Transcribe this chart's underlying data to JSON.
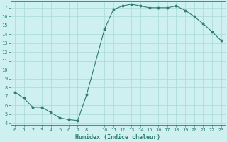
{
  "x": [
    0,
    1,
    2,
    3,
    4,
    5,
    6,
    7,
    8,
    10,
    11,
    12,
    13,
    14,
    15,
    16,
    17,
    18,
    19,
    20,
    21,
    22,
    23
  ],
  "y": [
    7.5,
    6.8,
    5.8,
    5.8,
    5.2,
    4.6,
    4.4,
    4.3,
    7.2,
    14.6,
    16.8,
    17.2,
    17.4,
    17.2,
    17.0,
    17.0,
    17.0,
    17.2,
    16.7,
    16.0,
    15.2,
    14.3,
    13.3
  ],
  "xlim": [
    -0.5,
    23.5
  ],
  "ylim": [
    3.8,
    17.7
  ],
  "yticks": [
    4,
    5,
    6,
    7,
    8,
    9,
    10,
    11,
    12,
    13,
    14,
    15,
    16,
    17
  ],
  "xtick_positions": [
    0,
    1,
    2,
    3,
    4,
    5,
    6,
    7,
    8,
    10,
    11,
    12,
    13,
    14,
    15,
    16,
    17,
    18,
    19,
    20,
    21,
    22,
    23
  ],
  "xtick_labels": [
    "0",
    "1",
    "2",
    "3",
    "4",
    "5",
    "6",
    "7",
    "8",
    "10",
    "11",
    "12",
    "13",
    "14",
    "15",
    "16",
    "17",
    "18",
    "19",
    "20",
    "21",
    "22",
    "23"
  ],
  "xlabel": "Humidex (Indice chaleur)",
  "line_color": "#2e7d6e",
  "marker_color": "#2e7d6e",
  "bg_color": "#cef0f0",
  "grid_color": "#a8d8d8",
  "axis_color": "#2e7d6e",
  "tick_color": "#2e7d6e",
  "label_color": "#2e7d6e",
  "tick_fontsize": 5.0,
  "xlabel_fontsize": 6.0
}
